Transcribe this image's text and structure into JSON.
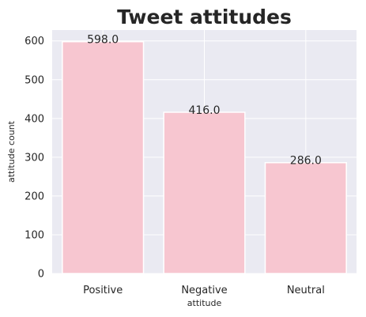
{
  "chart_data": {
    "type": "bar",
    "title": "Tweet attitudes",
    "xlabel": "attitude",
    "ylabel": "attitude count",
    "categories": [
      "Positive",
      "Negative",
      "Neutral"
    ],
    "values": [
      598,
      416,
      286
    ],
    "data_labels": [
      "598.0",
      "416.0",
      "286.0"
    ],
    "ylim": [
      0,
      628
    ],
    "yticks": [
      0,
      100,
      200,
      300,
      400,
      500,
      600
    ],
    "grid": true,
    "bar_color": "#f7c6d0",
    "background_color": "#eaeaf2",
    "grid_color": "#ffffff"
  }
}
